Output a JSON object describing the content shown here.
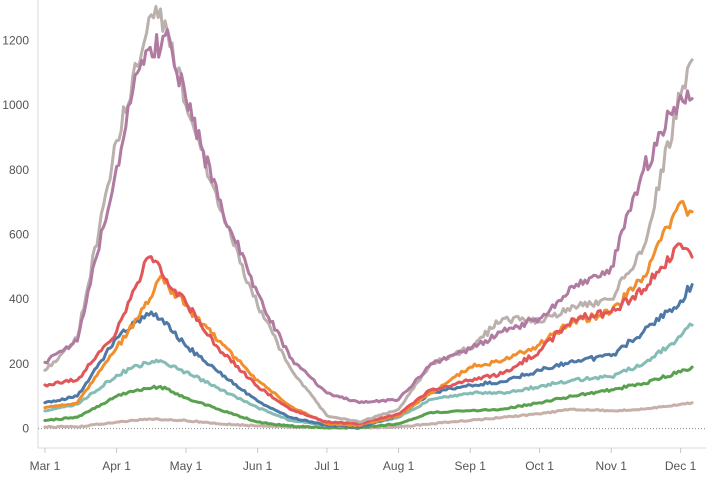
{
  "chart_data": {
    "type": "line",
    "title": "",
    "xlabel": "",
    "ylabel": "",
    "grid": false,
    "legend": "none",
    "x_range": [
      "2020-02-27",
      "2020-12-12"
    ],
    "ylim": [
      -60,
      1300
    ],
    "y_ticks": [
      {
        "value": 0,
        "label": "0"
      },
      {
        "value": 200,
        "label": "200"
      },
      {
        "value": 400,
        "label": "400"
      },
      {
        "value": 600,
        "label": "600"
      },
      {
        "value": 800,
        "label": "800"
      },
      {
        "value": 1000,
        "label": "1000"
      },
      {
        "value": 1200,
        "label": "1200"
      }
    ],
    "x_ticks": [
      {
        "date": "2020-03-01",
        "label": "Mar 1"
      },
      {
        "date": "2020-04-01",
        "label": "Apr 1"
      },
      {
        "date": "2020-05-01",
        "label": "May 1"
      },
      {
        "date": "2020-06-01",
        "label": "Jun 1"
      },
      {
        "date": "2020-07-01",
        "label": "Jul 1"
      },
      {
        "date": "2020-08-01",
        "label": "Aug 1"
      },
      {
        "date": "2020-09-01",
        "label": "Sep 1"
      },
      {
        "date": "2020-10-01",
        "label": "Oct 1"
      },
      {
        "date": "2020-11-01",
        "label": "Nov 1"
      },
      {
        "date": "2020-12-01",
        "label": "Dec 1"
      }
    ],
    "series": [
      {
        "color": "#c7b0a9",
        "points": [
          [
            "2020-03-01",
            5
          ],
          [
            "2020-03-15",
            5
          ],
          [
            "2020-04-01",
            20
          ],
          [
            "2020-04-15",
            30
          ],
          [
            "2020-05-01",
            25
          ],
          [
            "2020-05-15",
            15
          ],
          [
            "2020-06-01",
            8
          ],
          [
            "2020-06-15",
            5
          ],
          [
            "2020-07-01",
            3
          ],
          [
            "2020-07-15",
            3
          ],
          [
            "2020-08-01",
            5
          ],
          [
            "2020-08-15",
            15
          ],
          [
            "2020-09-01",
            25
          ],
          [
            "2020-09-15",
            35
          ],
          [
            "2020-10-01",
            45
          ],
          [
            "2020-10-15",
            60
          ],
          [
            "2020-11-01",
            55
          ],
          [
            "2020-11-15",
            60
          ],
          [
            "2020-12-01",
            75
          ],
          [
            "2020-12-06",
            80
          ]
        ]
      },
      {
        "color": "#59a14f",
        "points": [
          [
            "2020-03-01",
            25
          ],
          [
            "2020-03-15",
            35
          ],
          [
            "2020-04-01",
            100
          ],
          [
            "2020-04-10",
            120
          ],
          [
            "2020-04-20",
            130
          ],
          [
            "2020-05-01",
            95
          ],
          [
            "2020-05-15",
            60
          ],
          [
            "2020-06-01",
            20
          ],
          [
            "2020-06-15",
            8
          ],
          [
            "2020-07-01",
            3
          ],
          [
            "2020-07-15",
            2
          ],
          [
            "2020-08-01",
            15
          ],
          [
            "2020-08-15",
            50
          ],
          [
            "2020-09-01",
            55
          ],
          [
            "2020-09-15",
            60
          ],
          [
            "2020-10-01",
            80
          ],
          [
            "2020-10-15",
            100
          ],
          [
            "2020-11-01",
            120
          ],
          [
            "2020-11-15",
            140
          ],
          [
            "2020-12-01",
            175
          ],
          [
            "2020-12-06",
            190
          ]
        ]
      },
      {
        "color": "#86bcb6",
        "points": [
          [
            "2020-03-01",
            55
          ],
          [
            "2020-03-15",
            75
          ],
          [
            "2020-04-01",
            165
          ],
          [
            "2020-04-10",
            195
          ],
          [
            "2020-04-20",
            210
          ],
          [
            "2020-05-01",
            175
          ],
          [
            "2020-05-15",
            125
          ],
          [
            "2020-06-01",
            65
          ],
          [
            "2020-06-15",
            25
          ],
          [
            "2020-07-01",
            10
          ],
          [
            "2020-07-15",
            8
          ],
          [
            "2020-08-01",
            35
          ],
          [
            "2020-08-15",
            90
          ],
          [
            "2020-09-01",
            110
          ],
          [
            "2020-09-15",
            110
          ],
          [
            "2020-10-01",
            130
          ],
          [
            "2020-10-15",
            150
          ],
          [
            "2020-11-01",
            160
          ],
          [
            "2020-11-15",
            200
          ],
          [
            "2020-12-01",
            285
          ],
          [
            "2020-12-06",
            320
          ]
        ]
      },
      {
        "color": "#4e79a7",
        "points": [
          [
            "2020-03-01",
            80
          ],
          [
            "2020-03-15",
            100
          ],
          [
            "2020-04-01",
            280
          ],
          [
            "2020-04-10",
            335
          ],
          [
            "2020-04-18",
            355
          ],
          [
            "2020-05-01",
            255
          ],
          [
            "2020-05-15",
            175
          ],
          [
            "2020-06-01",
            85
          ],
          [
            "2020-06-15",
            35
          ],
          [
            "2020-07-01",
            10
          ],
          [
            "2020-07-15",
            5
          ],
          [
            "2020-08-01",
            40
          ],
          [
            "2020-08-15",
            110
          ],
          [
            "2020-09-01",
            135
          ],
          [
            "2020-09-15",
            145
          ],
          [
            "2020-10-01",
            180
          ],
          [
            "2020-10-15",
            210
          ],
          [
            "2020-11-01",
            225
          ],
          [
            "2020-11-15",
            300
          ],
          [
            "2020-12-01",
            395
          ],
          [
            "2020-12-06",
            445
          ]
        ]
      },
      {
        "color": "#f28e2b",
        "points": [
          [
            "2020-03-01",
            65
          ],
          [
            "2020-03-15",
            80
          ],
          [
            "2020-04-01",
            250
          ],
          [
            "2020-04-10",
            340
          ],
          [
            "2020-04-20",
            470
          ],
          [
            "2020-05-01",
            380
          ],
          [
            "2020-05-15",
            270
          ],
          [
            "2020-06-01",
            150
          ],
          [
            "2020-06-15",
            70
          ],
          [
            "2020-07-01",
            15
          ],
          [
            "2020-07-15",
            10
          ],
          [
            "2020-08-01",
            40
          ],
          [
            "2020-08-15",
            110
          ],
          [
            "2020-09-01",
            190
          ],
          [
            "2020-09-15",
            210
          ],
          [
            "2020-10-01",
            260
          ],
          [
            "2020-10-15",
            330
          ],
          [
            "2020-11-01",
            360
          ],
          [
            "2020-11-15",
            470
          ],
          [
            "2020-12-01",
            700
          ],
          [
            "2020-12-06",
            670
          ]
        ]
      },
      {
        "color": "#e15759",
        "points": [
          [
            "2020-03-01",
            135
          ],
          [
            "2020-03-15",
            150
          ],
          [
            "2020-04-01",
            300
          ],
          [
            "2020-04-10",
            450
          ],
          [
            "2020-04-15",
            530
          ],
          [
            "2020-05-01",
            390
          ],
          [
            "2020-05-15",
            250
          ],
          [
            "2020-06-01",
            130
          ],
          [
            "2020-06-15",
            60
          ],
          [
            "2020-07-01",
            20
          ],
          [
            "2020-07-15",
            15
          ],
          [
            "2020-08-01",
            45
          ],
          [
            "2020-08-15",
            120
          ],
          [
            "2020-09-01",
            150
          ],
          [
            "2020-09-15",
            170
          ],
          [
            "2020-10-01",
            240
          ],
          [
            "2020-10-15",
            340
          ],
          [
            "2020-11-01",
            360
          ],
          [
            "2020-11-15",
            430
          ],
          [
            "2020-12-01",
            570
          ],
          [
            "2020-12-06",
            530
          ]
        ]
      },
      {
        "color": "#bab0ac",
        "points": [
          [
            "2020-03-01",
            180
          ],
          [
            "2020-03-15",
            280
          ],
          [
            "2020-04-01",
            890
          ],
          [
            "2020-04-10",
            1120
          ],
          [
            "2020-04-15",
            1270
          ],
          [
            "2020-04-22",
            1260
          ],
          [
            "2020-05-01",
            1000
          ],
          [
            "2020-05-15",
            690
          ],
          [
            "2020-06-01",
            380
          ],
          [
            "2020-06-15",
            190
          ],
          [
            "2020-07-01",
            40
          ],
          [
            "2020-07-15",
            20
          ],
          [
            "2020-08-01",
            60
          ],
          [
            "2020-08-15",
            200
          ],
          [
            "2020-09-01",
            250
          ],
          [
            "2020-09-15",
            340
          ],
          [
            "2020-10-01",
            330
          ],
          [
            "2020-10-15",
            380
          ],
          [
            "2020-11-01",
            400
          ],
          [
            "2020-11-15",
            560
          ],
          [
            "2020-12-01",
            1030
          ],
          [
            "2020-12-06",
            1140
          ]
        ]
      },
      {
        "color": "#b07aa1",
        "points": [
          [
            "2020-03-01",
            205
          ],
          [
            "2020-03-15",
            270
          ],
          [
            "2020-04-01",
            810
          ],
          [
            "2020-04-10",
            1100
          ],
          [
            "2020-04-22",
            1215
          ],
          [
            "2020-05-01",
            1020
          ],
          [
            "2020-05-15",
            710
          ],
          [
            "2020-06-01",
            420
          ],
          [
            "2020-06-15",
            220
          ],
          [
            "2020-07-01",
            110
          ],
          [
            "2020-07-15",
            80
          ],
          [
            "2020-08-01",
            90
          ],
          [
            "2020-08-15",
            200
          ],
          [
            "2020-09-01",
            245
          ],
          [
            "2020-09-15",
            300
          ],
          [
            "2020-10-01",
            340
          ],
          [
            "2020-10-15",
            440
          ],
          [
            "2020-11-01",
            500
          ],
          [
            "2020-11-15",
            800
          ],
          [
            "2020-12-01",
            1030
          ],
          [
            "2020-12-06",
            1020
          ]
        ]
      }
    ]
  }
}
